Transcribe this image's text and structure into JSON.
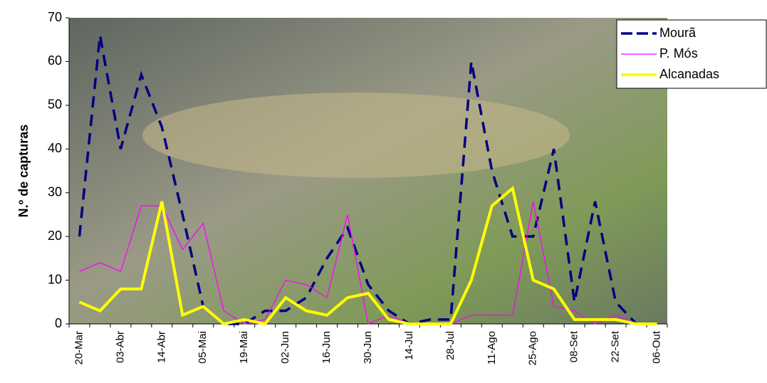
{
  "chart_data": {
    "type": "line",
    "y_label": "N.º de capturas",
    "categories": [
      "20-Mar",
      null,
      "03-Abr",
      null,
      "14-Abr",
      null,
      "05-Mai",
      null,
      "19-Mai",
      null,
      "02-Jun",
      null,
      "16-Jun",
      null,
      "30-Jun",
      null,
      "14-Jul",
      null,
      "28-Jul",
      null,
      "11-Ago",
      null,
      "25-Ago",
      null,
      "08-Set",
      null,
      "22-Set",
      null,
      "06-Out"
    ],
    "series": [
      {
        "name": "Mourã",
        "color": "#000080",
        "values": [
          20,
          66,
          40,
          57,
          45,
          25,
          4,
          0,
          0,
          3,
          3,
          6,
          15,
          22,
          9,
          3,
          0,
          1,
          1,
          60,
          35,
          20,
          20,
          40,
          5,
          28,
          5,
          0,
          0
        ]
      },
      {
        "name": "P. Mós",
        "color": "#ff00ff",
        "values": [
          12,
          14,
          12,
          27,
          27,
          17,
          23,
          3,
          0,
          1,
          10,
          9,
          6,
          25,
          0,
          2,
          0,
          0,
          0,
          2,
          2,
          2,
          28,
          4,
          3,
          0,
          2,
          0,
          0
        ]
      },
      {
        "name": "Alcanadas",
        "color": "#ffff00",
        "values": [
          5,
          3,
          8,
          8,
          28,
          2,
          4,
          0,
          1,
          0,
          6,
          3,
          2,
          6,
          7,
          1,
          0,
          0,
          0,
          10,
          27,
          31,
          10,
          8,
          1,
          1,
          1,
          0,
          0
        ]
      }
    ],
    "ylim": [
      0,
      70
    ],
    "yticks": [
      0,
      10,
      20,
      30,
      40,
      50,
      60,
      70
    ]
  }
}
